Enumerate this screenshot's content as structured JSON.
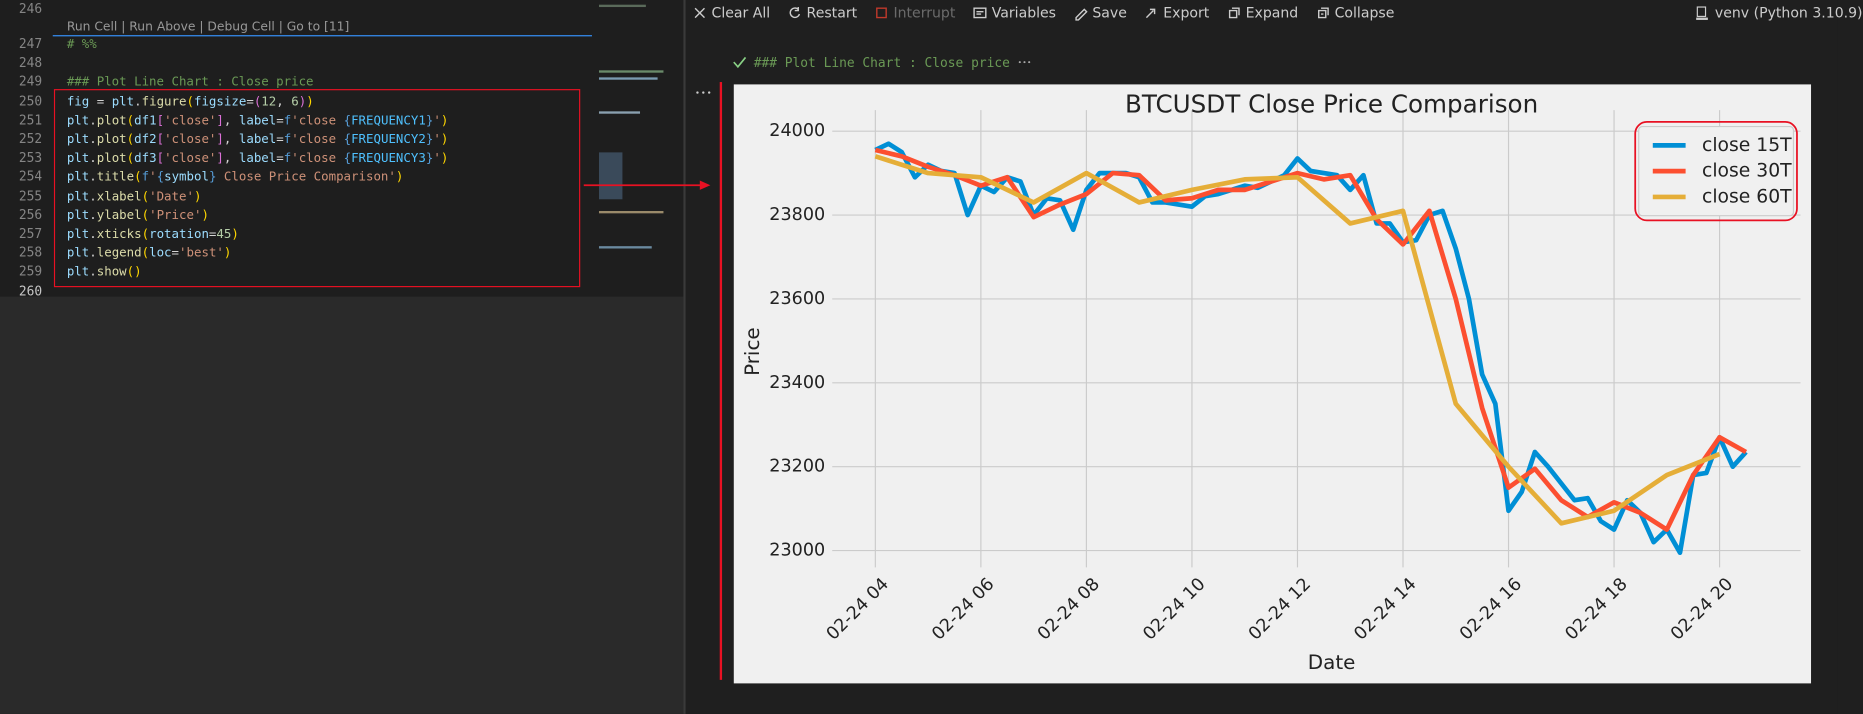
{
  "editor": {
    "codelens": "Run Cell | Run Above | Debug Cell | Go to [11]",
    "lines": [
      {
        "number": 246
      },
      {
        "number": 247,
        "tokens": [
          [
            "# %%",
            "#6a9955"
          ]
        ]
      },
      {
        "number": 248
      },
      {
        "number": 249,
        "tokens": [
          [
            "### Plot Line Chart : Close price",
            "#6a9955"
          ]
        ]
      },
      {
        "number": 250,
        "tokens": [
          [
            "fig",
            "#9cdcfe"
          ],
          [
            " = ",
            "#d4d4d4"
          ],
          [
            "plt",
            "#9cdcfe"
          ],
          [
            ".",
            "#d4d4d4"
          ],
          [
            "figure",
            "#dcdcaa"
          ],
          [
            "(",
            "#ffd700"
          ],
          [
            "figsize",
            "#9cdcfe"
          ],
          [
            "=",
            "#d4d4d4"
          ],
          [
            "(",
            "#da70d6"
          ],
          [
            "12",
            "#b5cea8"
          ],
          [
            ", ",
            "#d4d4d4"
          ],
          [
            "6",
            "#b5cea8"
          ],
          [
            ")",
            "#da70d6"
          ],
          [
            ")",
            "#ffd700"
          ]
        ]
      },
      {
        "number": 251,
        "tokens": [
          [
            "plt",
            "#9cdcfe"
          ],
          [
            ".",
            "#d4d4d4"
          ],
          [
            "plot",
            "#dcdcaa"
          ],
          [
            "(",
            "#ffd700"
          ],
          [
            "df1",
            "#9cdcfe"
          ],
          [
            "[",
            "#da70d6"
          ],
          [
            "'close'",
            "#ce9178"
          ],
          [
            "]",
            "#da70d6"
          ],
          [
            ", ",
            "#d4d4d4"
          ],
          [
            "label",
            "#9cdcfe"
          ],
          [
            "=",
            "#d4d4d4"
          ],
          [
            "f",
            "#569cd6"
          ],
          [
            "'close ",
            "#ce9178"
          ],
          [
            "{",
            "#569cd6"
          ],
          [
            "FREQUENCY1",
            "#4fc1ff"
          ],
          [
            "}",
            "#569cd6"
          ],
          [
            "'",
            "#ce9178"
          ],
          [
            ")",
            "#ffd700"
          ]
        ]
      },
      {
        "number": 252,
        "tokens": [
          [
            "plt",
            "#9cdcfe"
          ],
          [
            ".",
            "#d4d4d4"
          ],
          [
            "plot",
            "#dcdcaa"
          ],
          [
            "(",
            "#ffd700"
          ],
          [
            "df2",
            "#9cdcfe"
          ],
          [
            "[",
            "#da70d6"
          ],
          [
            "'close'",
            "#ce9178"
          ],
          [
            "]",
            "#da70d6"
          ],
          [
            ", ",
            "#d4d4d4"
          ],
          [
            "label",
            "#9cdcfe"
          ],
          [
            "=",
            "#d4d4d4"
          ],
          [
            "f",
            "#569cd6"
          ],
          [
            "'close ",
            "#ce9178"
          ],
          [
            "{",
            "#569cd6"
          ],
          [
            "FREQUENCY2",
            "#4fc1ff"
          ],
          [
            "}",
            "#569cd6"
          ],
          [
            "'",
            "#ce9178"
          ],
          [
            ")",
            "#ffd700"
          ]
        ]
      },
      {
        "number": 253,
        "tokens": [
          [
            "plt",
            "#9cdcfe"
          ],
          [
            ".",
            "#d4d4d4"
          ],
          [
            "plot",
            "#dcdcaa"
          ],
          [
            "(",
            "#ffd700"
          ],
          [
            "df3",
            "#9cdcfe"
          ],
          [
            "[",
            "#da70d6"
          ],
          [
            "'close'",
            "#ce9178"
          ],
          [
            "]",
            "#da70d6"
          ],
          [
            ", ",
            "#d4d4d4"
          ],
          [
            "label",
            "#9cdcfe"
          ],
          [
            "=",
            "#d4d4d4"
          ],
          [
            "f",
            "#569cd6"
          ],
          [
            "'close ",
            "#ce9178"
          ],
          [
            "{",
            "#569cd6"
          ],
          [
            "FREQUENCY3",
            "#4fc1ff"
          ],
          [
            "}",
            "#569cd6"
          ],
          [
            "'",
            "#ce9178"
          ],
          [
            ")",
            "#ffd700"
          ]
        ]
      },
      {
        "number": 254,
        "tokens": [
          [
            "plt",
            "#9cdcfe"
          ],
          [
            ".",
            "#d4d4d4"
          ],
          [
            "title",
            "#dcdcaa"
          ],
          [
            "(",
            "#ffd700"
          ],
          [
            "f",
            "#569cd6"
          ],
          [
            "'",
            "#ce9178"
          ],
          [
            "{",
            "#569cd6"
          ],
          [
            "symbol",
            "#9cdcfe"
          ],
          [
            "}",
            "#569cd6"
          ],
          [
            " Close Price Comparison'",
            "#ce9178"
          ],
          [
            ")",
            "#ffd700"
          ]
        ]
      },
      {
        "number": 255,
        "tokens": [
          [
            "plt",
            "#9cdcfe"
          ],
          [
            ".",
            "#d4d4d4"
          ],
          [
            "xlabel",
            "#dcdcaa"
          ],
          [
            "(",
            "#ffd700"
          ],
          [
            "'Date'",
            "#ce9178"
          ],
          [
            ")",
            "#ffd700"
          ]
        ]
      },
      {
        "number": 256,
        "tokens": [
          [
            "plt",
            "#9cdcfe"
          ],
          [
            ".",
            "#d4d4d4"
          ],
          [
            "ylabel",
            "#dcdcaa"
          ],
          [
            "(",
            "#ffd700"
          ],
          [
            "'Price'",
            "#ce9178"
          ],
          [
            ")",
            "#ffd700"
          ]
        ]
      },
      {
        "number": 257,
        "tokens": [
          [
            "plt",
            "#9cdcfe"
          ],
          [
            ".",
            "#d4d4d4"
          ],
          [
            "xticks",
            "#dcdcaa"
          ],
          [
            "(",
            "#ffd700"
          ],
          [
            "rotation",
            "#9cdcfe"
          ],
          [
            "=",
            "#d4d4d4"
          ],
          [
            "45",
            "#b5cea8"
          ],
          [
            ")",
            "#ffd700"
          ]
        ]
      },
      {
        "number": 258,
        "tokens": [
          [
            "plt",
            "#9cdcfe"
          ],
          [
            ".",
            "#d4d4d4"
          ],
          [
            "legend",
            "#dcdcaa"
          ],
          [
            "(",
            "#ffd700"
          ],
          [
            "loc",
            "#9cdcfe"
          ],
          [
            "=",
            "#d4d4d4"
          ],
          [
            "'best'",
            "#ce9178"
          ],
          [
            ")",
            "#ffd700"
          ]
        ]
      },
      {
        "number": 259,
        "tokens": [
          [
            "plt",
            "#9cdcfe"
          ],
          [
            ".",
            "#d4d4d4"
          ],
          [
            "show",
            "#dcdcaa"
          ],
          [
            "()",
            "#ffd700"
          ]
        ]
      },
      {
        "number": 260
      }
    ]
  },
  "toolbar": {
    "items": [
      {
        "label": "Clear All"
      },
      {
        "label": "Restart"
      },
      {
        "label": "Interrupt",
        "disabled": true
      },
      {
        "label": "Variables"
      },
      {
        "label": "Save"
      },
      {
        "label": "Export"
      },
      {
        "label": "Expand"
      },
      {
        "label": "Collapse"
      }
    ],
    "kernel": "venv (Python 3.10.9)"
  },
  "cell": {
    "header": "### Plot Line Chart : Close price"
  },
  "chart_data": {
    "type": "line",
    "title": "BTCUSDT Close Price Comparison",
    "x_label": "Date",
    "y_label": "Price",
    "xlim": [
      "02-24 03:11",
      "02-24 21:32"
    ],
    "xticks": [
      {
        "value": "02-24 04:00",
        "label": "02-24 04"
      },
      {
        "value": "02-24 06:00",
        "label": "02-24 06"
      },
      {
        "value": "02-24 08:00",
        "label": "02-24 08"
      },
      {
        "value": "02-24 10:00",
        "label": "02-24 10"
      },
      {
        "value": "02-24 12:00",
        "label": "02-24 12"
      },
      {
        "value": "02-24 14:00",
        "label": "02-24 14"
      },
      {
        "value": "02-24 16:00",
        "label": "02-24 16"
      },
      {
        "value": "02-24 18:00",
        "label": "02-24 18"
      },
      {
        "value": "02-24 20:00",
        "label": "02-24 20"
      }
    ],
    "ylim": [
      22960,
      24050
    ],
    "yticks": [
      23000,
      23200,
      23400,
      23600,
      23800,
      24000
    ],
    "grid": true,
    "legend": "upper right",
    "series": [
      {
        "name": "close 15T",
        "color": "#008fd5",
        "x": [
          "02-24 04:00",
          "02-24 04:15",
          "02-24 04:30",
          "02-24 04:45",
          "02-24 05:00",
          "02-24 05:15",
          "02-24 05:30",
          "02-24 05:45",
          "02-24 06:00",
          "02-24 06:15",
          "02-24 06:30",
          "02-24 06:45",
          "02-24 07:00",
          "02-24 07:15",
          "02-24 07:30",
          "02-24 07:45",
          "02-24 08:00",
          "02-24 08:15",
          "02-24 08:30",
          "02-24 08:45",
          "02-24 09:00",
          "02-24 09:15",
          "02-24 09:30",
          "02-24 09:45",
          "02-24 10:00",
          "02-24 10:15",
          "02-24 10:30",
          "02-24 10:45",
          "02-24 11:00",
          "02-24 11:15",
          "02-24 11:30",
          "02-24 11:45",
          "02-24 12:00",
          "02-24 12:15",
          "02-24 12:30",
          "02-24 12:45",
          "02-24 13:00",
          "02-24 13:15",
          "02-24 13:30",
          "02-24 13:45",
          "02-24 14:00",
          "02-24 14:15",
          "02-24 14:30",
          "02-24 14:45",
          "02-24 15:00",
          "02-24 15:15",
          "02-24 15:30",
          "02-24 15:45",
          "02-24 16:00",
          "02-24 16:15",
          "02-24 16:30",
          "02-24 16:45",
          "02-24 17:00",
          "02-24 17:15",
          "02-24 17:30",
          "02-24 17:45",
          "02-24 18:00",
          "02-24 18:15",
          "02-24 18:30",
          "02-24 18:45",
          "02-24 19:00",
          "02-24 19:15",
          "02-24 19:30",
          "02-24 19:45",
          "02-24 20:00",
          "02-24 20:15",
          "02-24 20:30"
        ],
        "values": [
          23955,
          23970,
          23950,
          23890,
          23920,
          23905,
          23900,
          23800,
          23870,
          23855,
          23890,
          23880,
          23800,
          23840,
          23835,
          23765,
          23860,
          23900,
          23900,
          23900,
          23890,
          23830,
          23830,
          23825,
          23820,
          23845,
          23850,
          23860,
          23870,
          23865,
          23880,
          23895,
          23935,
          23905,
          23900,
          23895,
          23860,
          23895,
          23780,
          23780,
          23735,
          23740,
          23800,
          23810,
          23720,
          23600,
          23420,
          23350,
          23095,
          23140,
          23235,
          23200,
          23160,
          23120,
          23125,
          23070,
          23050,
          23120,
          23090,
          23020,
          23050,
          22995,
          23180,
          23185,
          23270,
          23200,
          23235
        ]
      },
      {
        "name": "close 30T",
        "color": "#fc4f30",
        "x": [
          "02-24 04:00",
          "02-24 04:30",
          "02-24 05:00",
          "02-24 05:30",
          "02-24 06:00",
          "02-24 06:30",
          "02-24 07:00",
          "02-24 07:30",
          "02-24 08:00",
          "02-24 08:30",
          "02-24 09:00",
          "02-24 09:30",
          "02-24 10:00",
          "02-24 10:30",
          "02-24 11:00",
          "02-24 11:30",
          "02-24 12:00",
          "02-24 12:30",
          "02-24 13:00",
          "02-24 13:30",
          "02-24 14:00",
          "02-24 14:30",
          "02-24 15:00",
          "02-24 15:30",
          "02-24 16:00",
          "02-24 16:30",
          "02-24 17:00",
          "02-24 17:30",
          "02-24 18:00",
          "02-24 18:30",
          "02-24 19:00",
          "02-24 19:30",
          "02-24 20:00",
          "02-24 20:30"
        ],
        "values": [
          23955,
          23940,
          23915,
          23895,
          23870,
          23890,
          23795,
          23825,
          23850,
          23900,
          23895,
          23835,
          23840,
          23860,
          23860,
          23880,
          23900,
          23885,
          23895,
          23790,
          23730,
          23810,
          23600,
          23340,
          23150,
          23195,
          23120,
          23080,
          23115,
          23090,
          23050,
          23180,
          23270,
          23235
        ]
      },
      {
        "name": "close 60T",
        "color": "#e5ae38",
        "x": [
          "02-24 04:00",
          "02-24 05:00",
          "02-24 06:00",
          "02-24 07:00",
          "02-24 08:00",
          "02-24 09:00",
          "02-24 10:00",
          "02-24 11:00",
          "02-24 12:00",
          "02-24 13:00",
          "02-24 14:00",
          "02-24 15:00",
          "02-24 16:00",
          "02-24 17:00",
          "02-24 18:00",
          "02-24 19:00",
          "02-24 20:00"
        ],
        "values": [
          23940,
          23900,
          23890,
          23830,
          23900,
          23830,
          23860,
          23885,
          23890,
          23780,
          23810,
          23350,
          23200,
          23065,
          23095,
          23180,
          23230
        ]
      }
    ]
  }
}
